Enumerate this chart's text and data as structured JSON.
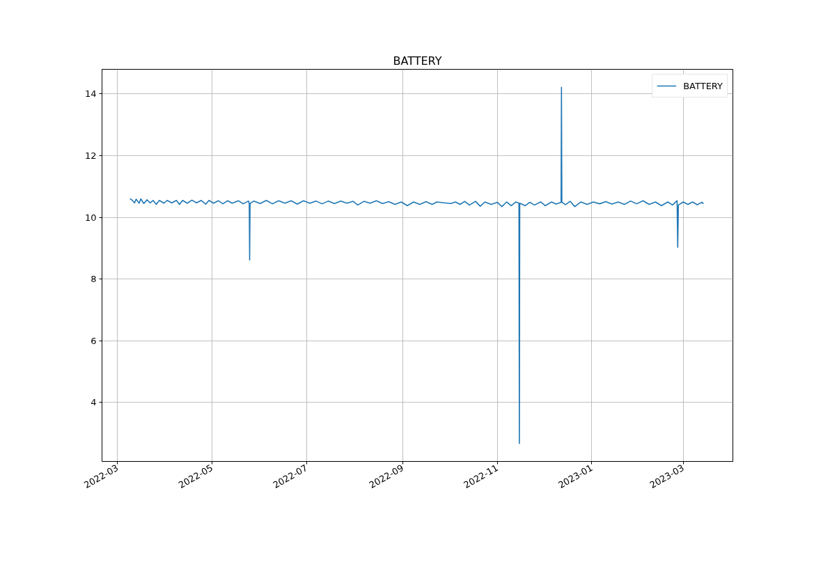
{
  "chart_data": {
    "type": "line",
    "title": "BATTERY",
    "x": [
      "2022-03-09",
      "2022-03-10",
      "2022-03-12",
      "2022-03-13",
      "2022-03-15",
      "2022-03-16",
      "2022-03-18",
      "2022-03-20",
      "2022-03-22",
      "2022-03-24",
      "2022-03-26",
      "2022-03-28",
      "2022-03-31",
      "2022-04-02",
      "2022-04-05",
      "2022-04-08",
      "2022-04-10",
      "2022-04-12",
      "2022-04-15",
      "2022-04-18",
      "2022-04-21",
      "2022-04-24",
      "2022-04-27",
      "2022-04-29",
      "2022-05-02",
      "2022-05-05",
      "2022-05-08",
      "2022-05-11",
      "2022-05-14",
      "2022-05-18",
      "2022-05-21",
      "2022-05-24T12:00",
      "2022-05-25T00:00",
      "2022-05-25T06:00",
      "2022-05-25T12:00",
      "2022-05-28",
      "2022-06-01",
      "2022-06-05",
      "2022-06-09",
      "2022-06-13",
      "2022-06-17",
      "2022-06-21",
      "2022-06-25",
      "2022-06-29",
      "2022-07-03",
      "2022-07-07",
      "2022-07-11",
      "2022-07-15",
      "2022-07-19",
      "2022-07-23",
      "2022-07-27",
      "2022-07-31",
      "2022-08-03",
      "2022-08-07",
      "2022-08-11",
      "2022-08-15",
      "2022-08-19",
      "2022-08-23",
      "2022-08-27",
      "2022-08-31",
      "2022-09-04",
      "2022-09-08",
      "2022-09-12",
      "2022-09-16",
      "2022-09-20",
      "2022-09-23",
      "2022-10-02",
      "2022-10-05",
      "2022-10-08",
      "2022-10-11",
      "2022-10-14",
      "2022-10-18",
      "2022-10-21",
      "2022-10-24",
      "2022-10-28",
      "2022-11-01",
      "2022-11-04",
      "2022-11-07",
      "2022-11-10",
      "2022-11-13",
      "2022-11-15T00:00",
      "2022-11-15T06:00",
      "2022-11-15T12:00",
      "2022-11-19",
      "2022-11-22",
      "2022-11-25",
      "2022-11-29",
      "2022-12-02",
      "2022-12-06",
      "2022-12-09",
      "2022-12-12T04:00",
      "2022-12-12T10:00",
      "2022-12-12T16:00",
      "2022-12-15",
      "2022-12-18",
      "2022-12-21",
      "2022-12-25",
      "2022-12-29",
      "2023-01-02",
      "2023-01-06",
      "2023-01-10",
      "2023-01-14",
      "2023-01-18",
      "2023-01-22",
      "2023-01-26",
      "2023-01-30",
      "2023-02-03",
      "2023-02-07",
      "2023-02-11",
      "2023-02-15",
      "2023-02-19",
      "2023-02-22",
      "2023-02-25T00:00",
      "2023-02-25T10:00",
      "2023-02-25T20:00",
      "2023-03-01",
      "2023-03-04",
      "2023-03-07",
      "2023-03-10",
      "2023-03-13",
      "2023-03-14"
    ],
    "series": [
      {
        "name": "BATTERY",
        "color": "#1f77b4",
        "values": [
          10.6,
          10.58,
          10.47,
          10.59,
          10.46,
          10.6,
          10.45,
          10.57,
          10.47,
          10.55,
          10.42,
          10.55,
          10.46,
          10.55,
          10.47,
          10.55,
          10.42,
          10.55,
          10.46,
          10.56,
          10.47,
          10.55,
          10.43,
          10.55,
          10.46,
          10.54,
          10.44,
          10.54,
          10.46,
          10.54,
          10.44,
          10.53,
          10.45,
          8.62,
          10.45,
          10.53,
          10.45,
          10.55,
          10.44,
          10.54,
          10.46,
          10.54,
          10.43,
          10.54,
          10.46,
          10.53,
          10.44,
          10.53,
          10.45,
          10.53,
          10.46,
          10.52,
          10.4,
          10.52,
          10.46,
          10.54,
          10.45,
          10.51,
          10.42,
          10.5,
          10.38,
          10.5,
          10.42,
          10.51,
          10.42,
          10.5,
          10.45,
          10.5,
          10.42,
          10.52,
          10.4,
          10.52,
          10.36,
          10.5,
          10.42,
          10.49,
          10.35,
          10.5,
          10.38,
          10.5,
          10.46,
          2.67,
          10.46,
          10.38,
          10.49,
          10.4,
          10.5,
          10.38,
          10.5,
          10.43,
          10.49,
          14.22,
          10.49,
          10.41,
          10.52,
          10.35,
          10.5,
          10.42,
          10.5,
          10.44,
          10.51,
          10.43,
          10.5,
          10.42,
          10.53,
          10.44,
          10.54,
          10.42,
          10.5,
          10.38,
          10.5,
          10.4,
          10.54,
          9.03,
          10.4,
          10.5,
          10.42,
          10.5,
          10.41,
          10.49,
          10.44
        ]
      }
    ],
    "xlim": [
      "2022-02-19",
      "2023-04-02"
    ],
    "xticks": [
      "2022-03",
      "2022-05",
      "2022-07",
      "2022-09",
      "2022-11",
      "2023-01",
      "2023-03"
    ],
    "ylim": [
      2.09,
      14.8
    ],
    "yticks": [
      4,
      6,
      8,
      10,
      12,
      14
    ],
    "grid": true,
    "legend": "top right",
    "line_style": "solid"
  }
}
